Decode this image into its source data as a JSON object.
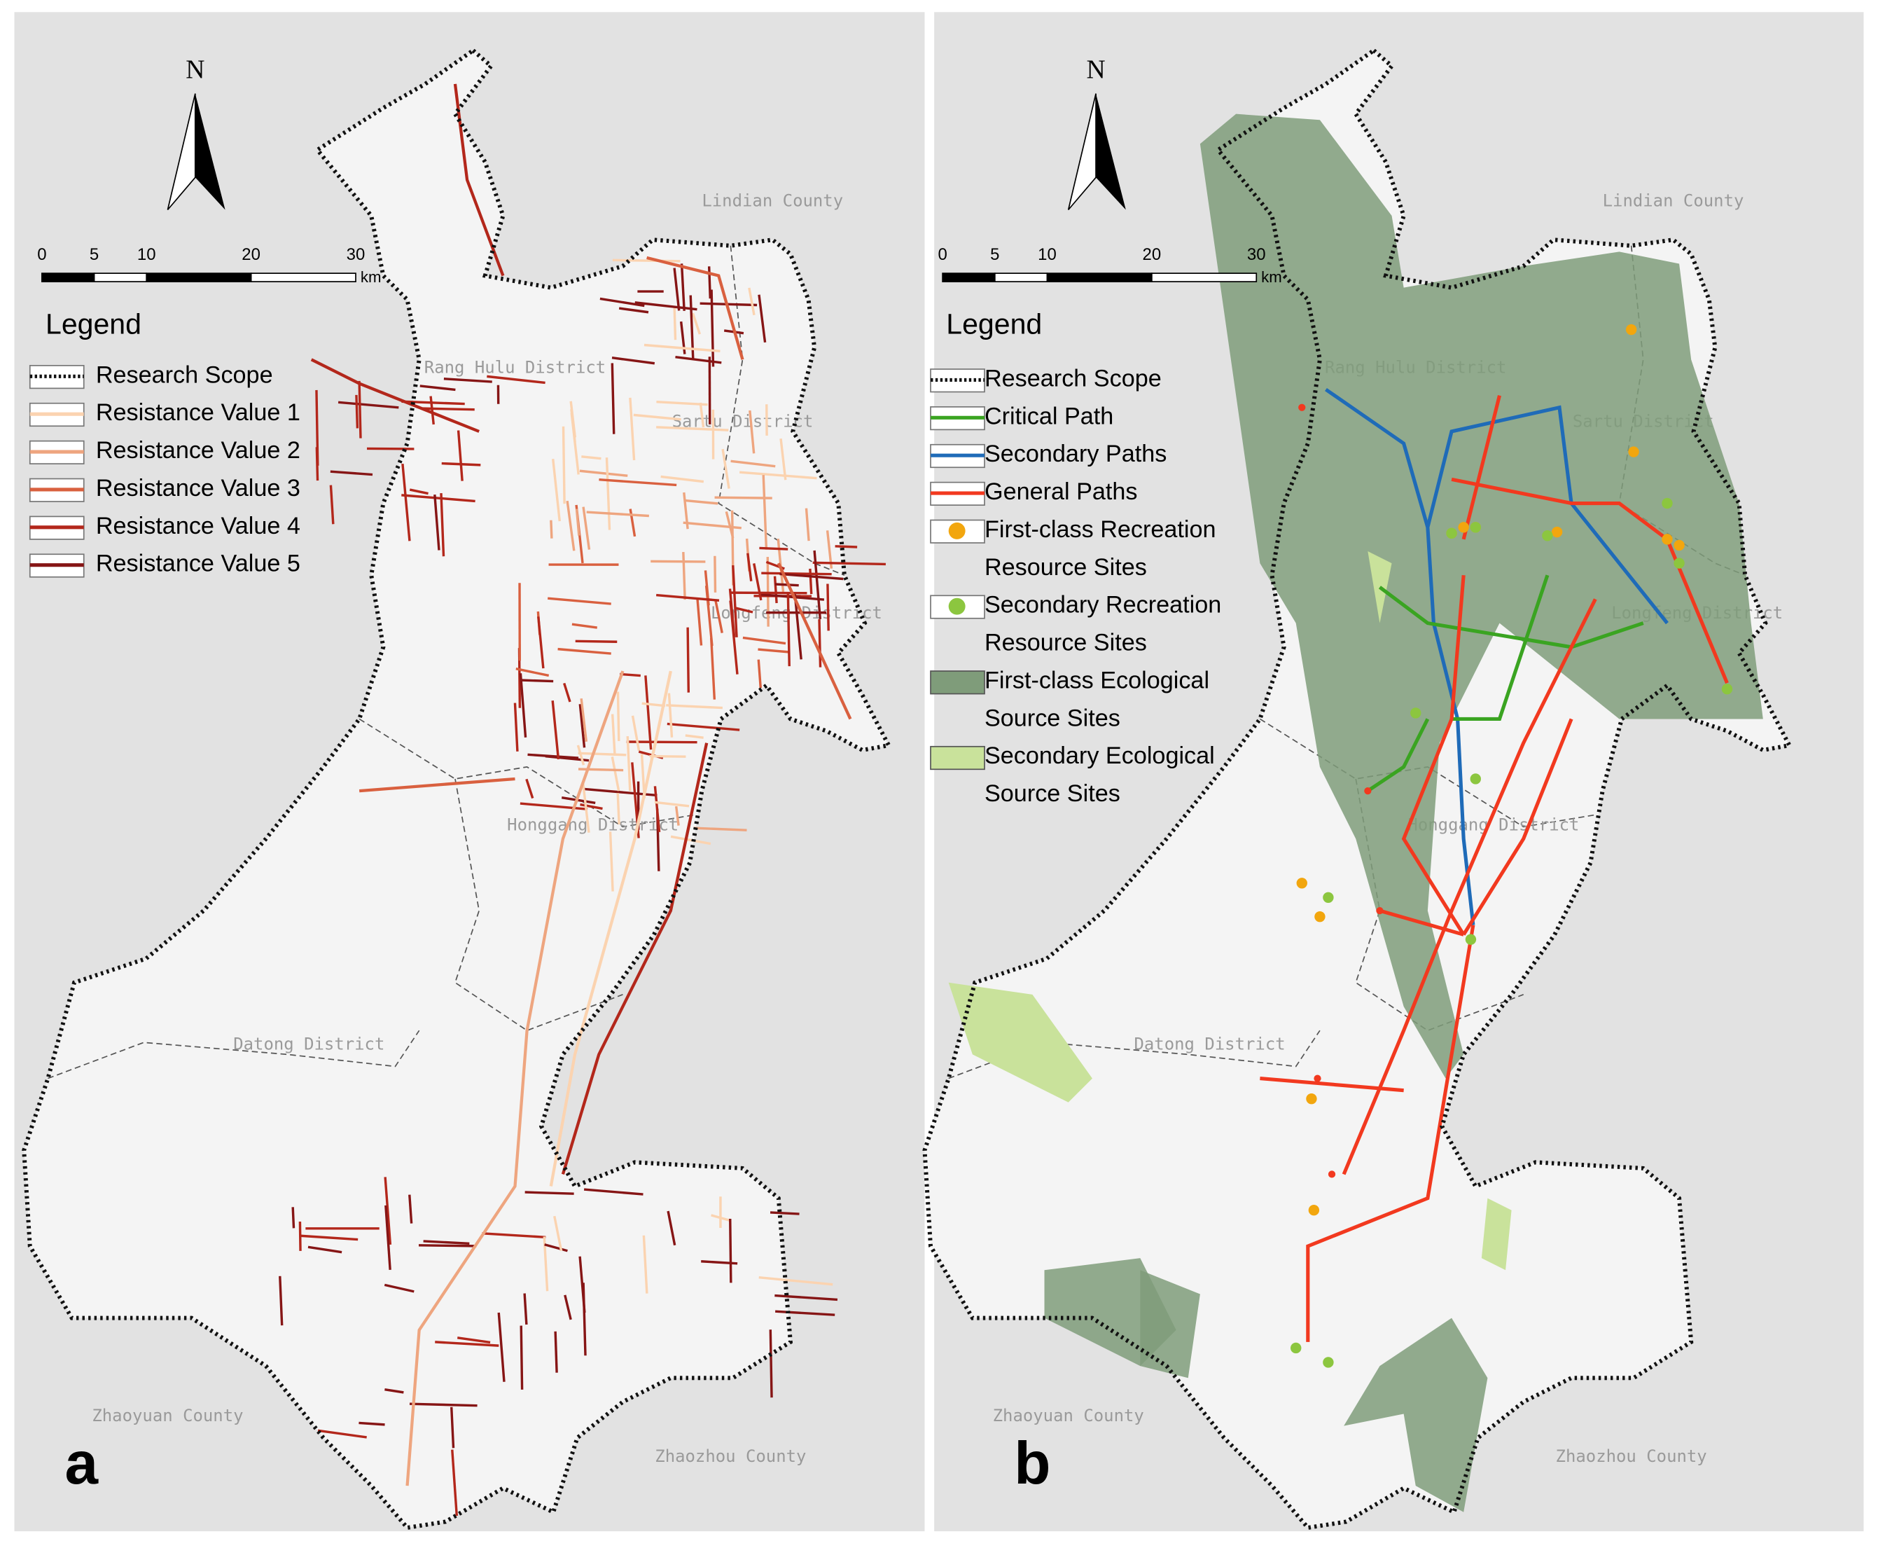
{
  "panels": [
    {
      "label": "a",
      "north": "N",
      "scale_bar": {
        "ticks": [
          0,
          5,
          10,
          20,
          30
        ],
        "unit": "km"
      },
      "legend": {
        "title": "Legend",
        "items": [
          {
            "lines": [
              "Research Scope"
            ],
            "symbol": "dotted",
            "color": "#111111"
          },
          {
            "lines": [
              "Resistance Value 1"
            ],
            "symbol": "line",
            "color": "#fbd3b0"
          },
          {
            "lines": [
              "Resistance Value 2"
            ],
            "symbol": "line",
            "color": "#eea57f"
          },
          {
            "lines": [
              "Resistance Value 3"
            ],
            "symbol": "line",
            "color": "#d9603f"
          },
          {
            "lines": [
              "Resistance Value 4"
            ],
            "symbol": "line",
            "color": "#b3271b"
          },
          {
            "lines": [
              "Resistance Value 5"
            ],
            "symbol": "line",
            "color": "#861515"
          }
        ]
      },
      "places": [
        "Lindian County",
        "Rang Hulu District",
        "Sartu District",
        "Longfeng District",
        "Honggang District",
        "Datong District",
        "Zhaoyuan County",
        "Zhaozhou County"
      ]
    },
    {
      "label": "b",
      "north": "N",
      "scale_bar": {
        "ticks": [
          0,
          5,
          10,
          20,
          30
        ],
        "unit": "km"
      },
      "legend": {
        "title": "Legend",
        "items": [
          {
            "lines": [
              "Research Scope"
            ],
            "symbol": "dotted",
            "color": "#111111"
          },
          {
            "lines": [
              "Critical Path"
            ],
            "symbol": "line",
            "color": "#3aa421"
          },
          {
            "lines": [
              "Secondary Paths"
            ],
            "symbol": "line",
            "color": "#1f6bb8"
          },
          {
            "lines": [
              "General Paths"
            ],
            "symbol": "line",
            "color": "#f2391f"
          },
          {
            "lines": [
              "First-class Recreation",
              "Resource Sites"
            ],
            "symbol": "dot",
            "color": "#f2a60e"
          },
          {
            "lines": [
              "Secondary Recreation",
              "Resource Sites"
            ],
            "symbol": "dot",
            "color": "#8cc63f"
          },
          {
            "lines": [
              "First-class Ecological",
              "Source Sites"
            ],
            "symbol": "fill",
            "color": "#7f9c7a"
          },
          {
            "lines": [
              "Secondary Ecological",
              "Source Sites"
            ],
            "symbol": "fill",
            "color": "#c9e29b"
          }
        ]
      },
      "places": [
        "Lindian County",
        "Rang Hulu District",
        "Sartu District",
        "Longfeng District",
        "Honggang District",
        "Datong District",
        "Zhaoyuan County",
        "Zhaozhou County"
      ]
    }
  ]
}
